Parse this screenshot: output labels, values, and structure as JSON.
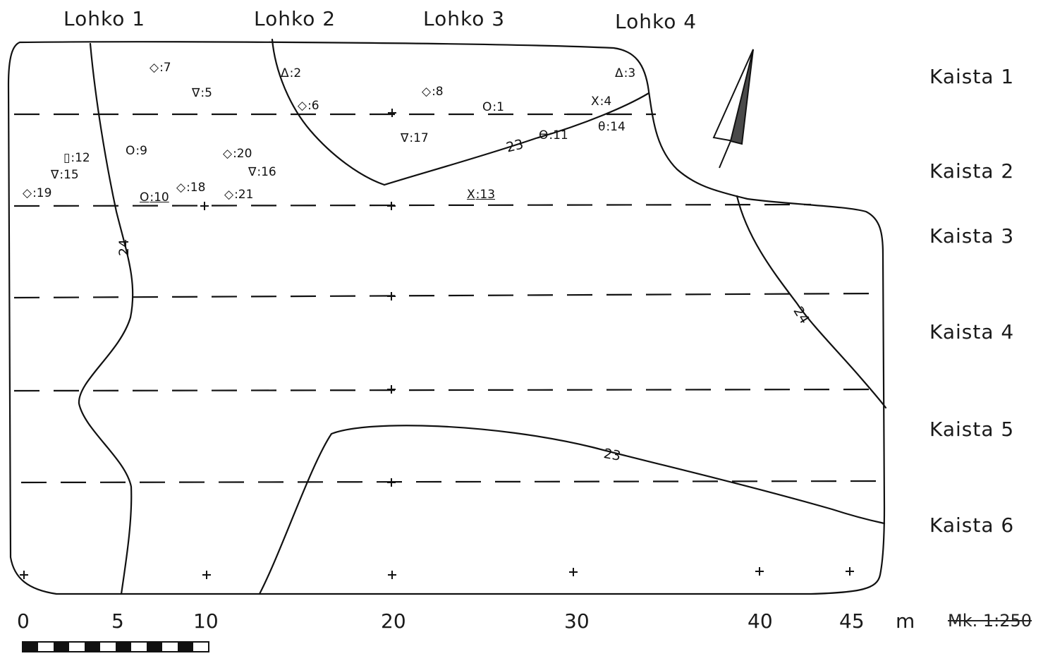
{
  "blocks": [
    "Lohko 1",
    "Lohko 2",
    "Lohko 3",
    "Lohko 4"
  ],
  "strips": [
    "Kaista 1",
    "Kaista 2",
    "Kaista 3",
    "Kaista 4",
    "Kaista 5",
    "Kaista 6"
  ],
  "scale": {
    "ticks": [
      "0",
      "5",
      "10",
      "20",
      "30",
      "40",
      "45"
    ],
    "unit": "m",
    "ratio": "Mk. 1:250"
  },
  "contours": [
    "24",
    "23",
    "24",
    "23"
  ],
  "finds": [
    {
      "symbol": "◇",
      "label": ":7"
    },
    {
      "symbol": "∇",
      "label": ":5"
    },
    {
      "symbol": "Δ",
      "label": ":2"
    },
    {
      "symbol": "◇",
      "label": ":6"
    },
    {
      "symbol": "◇",
      "label": ":8"
    },
    {
      "symbol": "O",
      "label": ":1"
    },
    {
      "symbol": "Δ",
      "label": ":3"
    },
    {
      "symbol": "X",
      "label": ":4"
    },
    {
      "symbol": "∇",
      "label": ":17"
    },
    {
      "symbol": "ϴ",
      "label": ":11"
    },
    {
      "symbol": "θ",
      "label": ":14"
    },
    {
      "symbol": "▯",
      "label": ":12"
    },
    {
      "symbol": "O",
      "label": ":9"
    },
    {
      "symbol": "◇",
      "label": ":20"
    },
    {
      "symbol": "∇",
      "label": ":15"
    },
    {
      "symbol": "∇",
      "label": ":16"
    },
    {
      "symbol": "◇",
      "label": ":19"
    },
    {
      "symbol": "O",
      "label": ":10"
    },
    {
      "symbol": "◇",
      "label": ":18"
    },
    {
      "symbol": "◇",
      "label": ":21"
    },
    {
      "symbol": "X",
      "label": ":13"
    }
  ]
}
